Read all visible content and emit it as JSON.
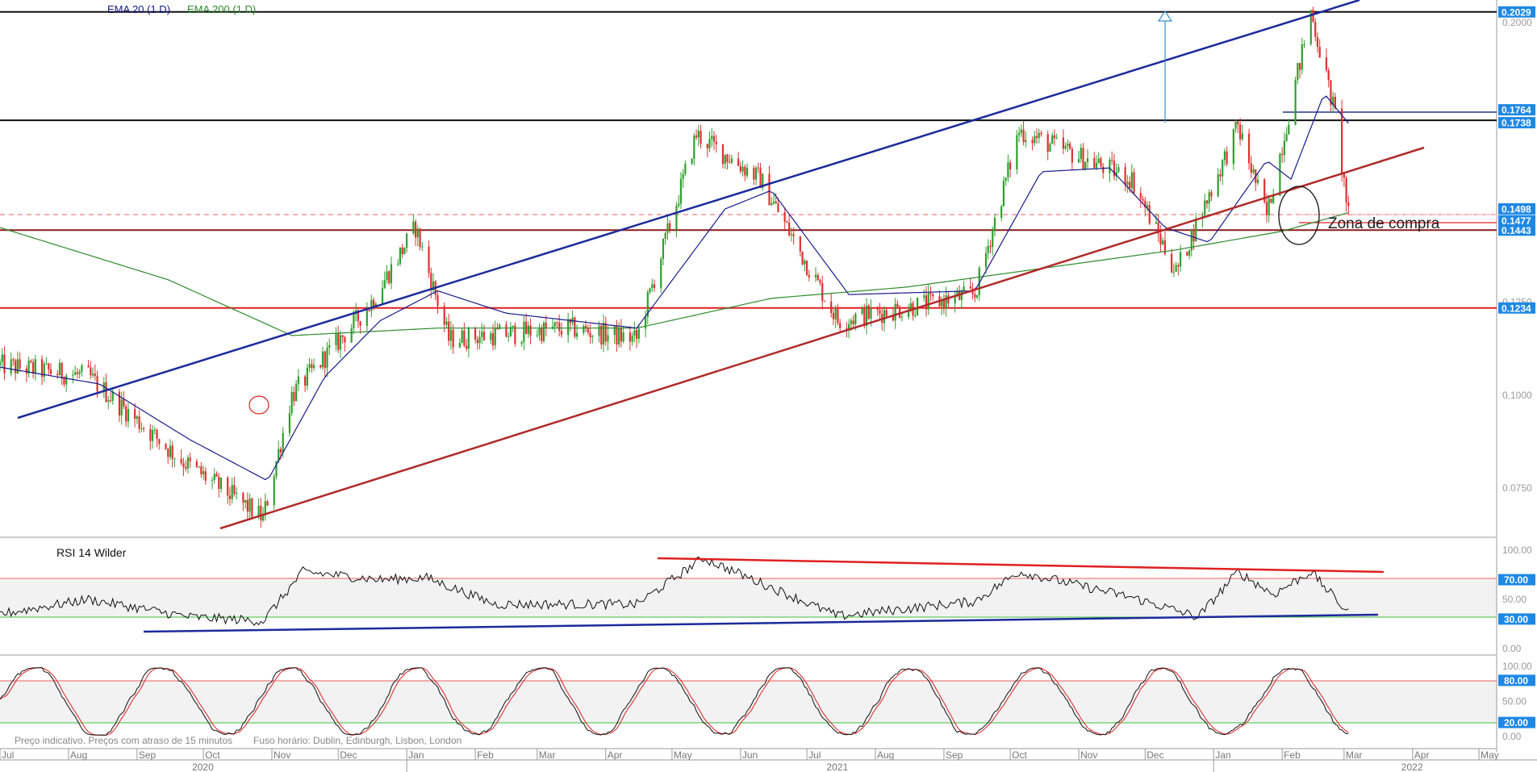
{
  "chart_data": {
    "type": "candlestick",
    "main": {
      "legend": {
        "ema20": "EMA 20  (1 D)",
        "ema200": "EMA 200  (1 D)"
      },
      "y_ticks": [
        "0.2000",
        "0.1250",
        "0.1000",
        "0.0750"
      ],
      "ylim": [
        0.064,
        0.2035
      ],
      "price_labels": [
        {
          "text": "0.2029",
          "value": 0.2029,
          "color": "#1e88e5"
        },
        {
          "text": "0.1764",
          "value": 0.1764,
          "color": "#1e88e5"
        },
        {
          "text": "0.1738",
          "value": 0.1738,
          "color": "#1e88e5"
        },
        {
          "text": "0.1498",
          "value": 0.1498,
          "color": "#1e88e5"
        },
        {
          "text": "0.1477",
          "value": 0.1477,
          "color": "#1e88e5"
        },
        {
          "text": "0.1443",
          "value": 0.1443,
          "color": "#1e88e5"
        },
        {
          "text": "0.1234",
          "value": 0.1234,
          "color": "#1e88e5"
        }
      ],
      "horizontal_lines": [
        {
          "value": 0.2029,
          "color": "#111111"
        },
        {
          "value": 0.1738,
          "color": "#111111"
        },
        {
          "value": 0.1443,
          "color": "#8b1a1a"
        },
        {
          "value": 0.1234,
          "color": "#e02020"
        }
      ],
      "annotation": "Zona de compra",
      "key_points": [
        {
          "date": "2020-07-01",
          "price": 0.108
        },
        {
          "date": "2020-08-10",
          "price": 0.105
        },
        {
          "date": "2020-09-20",
          "price": 0.083
        },
        {
          "date": "2020-10-28",
          "price": 0.067
        },
        {
          "date": "2020-11-10",
          "price": 0.1
        },
        {
          "date": "2020-12-15",
          "price": 0.124
        },
        {
          "date": "2021-01-05",
          "price": 0.145
        },
        {
          "date": "2021-01-20",
          "price": 0.115
        },
        {
          "date": "2021-03-15",
          "price": 0.118
        },
        {
          "date": "2021-04-15",
          "price": 0.115
        },
        {
          "date": "2021-05-12",
          "price": 0.17
        },
        {
          "date": "2021-06-10",
          "price": 0.158
        },
        {
          "date": "2021-07-15",
          "price": 0.12
        },
        {
          "date": "2021-09-15",
          "price": 0.127
        },
        {
          "date": "2021-10-05",
          "price": 0.171
        },
        {
          "date": "2021-11-25",
          "price": 0.158
        },
        {
          "date": "2021-12-15",
          "price": 0.133
        },
        {
          "date": "2022-01-12",
          "price": 0.172
        },
        {
          "date": "2022-01-25",
          "price": 0.148
        },
        {
          "date": "2022-02-14",
          "price": 0.203
        },
        {
          "date": "2022-02-25",
          "price": 0.175
        },
        {
          "date": "2022-03-03",
          "price": 0.148
        }
      ],
      "ema20_points": [
        {
          "date": "2020-07-01",
          "price": 0.1075
        },
        {
          "date": "2020-08-15",
          "price": 0.103
        },
        {
          "date": "2020-09-25",
          "price": 0.088
        },
        {
          "date": "2020-10-30",
          "price": 0.077
        },
        {
          "date": "2020-11-25",
          "price": 0.105
        },
        {
          "date": "2020-12-20",
          "price": 0.12
        },
        {
          "date": "2021-01-15",
          "price": 0.128
        },
        {
          "date": "2021-02-15",
          "price": 0.122
        },
        {
          "date": "2021-04-15",
          "price": 0.118
        },
        {
          "date": "2021-05-25",
          "price": 0.15
        },
        {
          "date": "2021-06-15",
          "price": 0.155
        },
        {
          "date": "2021-07-20",
          "price": 0.127
        },
        {
          "date": "2021-09-15",
          "price": 0.128
        },
        {
          "date": "2021-10-15",
          "price": 0.16
        },
        {
          "date": "2021-11-15",
          "price": 0.161
        },
        {
          "date": "2021-12-10",
          "price": 0.145
        },
        {
          "date": "2021-12-30",
          "price": 0.141
        },
        {
          "date": "2022-01-25",
          "price": 0.163
        },
        {
          "date": "2022-02-05",
          "price": 0.158
        },
        {
          "date": "2022-02-20",
          "price": 0.181
        },
        {
          "date": "2022-03-03",
          "price": 0.173
        }
      ],
      "ema200_points": [
        {
          "date": "2020-07-01",
          "price": 0.145
        },
        {
          "date": "2020-09-15",
          "price": 0.131
        },
        {
          "date": "2020-11-10",
          "price": 0.116
        },
        {
          "date": "2021-01-15",
          "price": 0.118
        },
        {
          "date": "2021-04-15",
          "price": 0.118
        },
        {
          "date": "2021-06-15",
          "price": 0.126
        },
        {
          "date": "2021-08-15",
          "price": 0.129
        },
        {
          "date": "2021-10-15",
          "price": 0.134
        },
        {
          "date": "2021-12-15",
          "price": 0.139
        },
        {
          "date": "2022-02-01",
          "price": 0.144
        },
        {
          "date": "2022-03-03",
          "price": 0.149
        }
      ]
    },
    "rsi": {
      "label": "RSI 14 Wilder",
      "y_ticks": [
        "100.00",
        "50.00",
        "0.00"
      ],
      "levels": [
        {
          "text": "70.00",
          "value": 70,
          "color": "#1e88e5"
        },
        {
          "text": "30.00",
          "value": 30,
          "color": "#1e88e5"
        }
      ],
      "key_points": [
        {
          "date": "2020-07-01",
          "value": 35
        },
        {
          "date": "2020-08-10",
          "value": 50
        },
        {
          "date": "2020-09-25",
          "value": 32
        },
        {
          "date": "2020-10-28",
          "value": 28
        },
        {
          "date": "2020-11-15",
          "value": 78
        },
        {
          "date": "2020-12-20",
          "value": 70
        },
        {
          "date": "2021-01-10",
          "value": 72
        },
        {
          "date": "2021-02-10",
          "value": 45
        },
        {
          "date": "2021-04-15",
          "value": 45
        },
        {
          "date": "2021-05-15",
          "value": 92
        },
        {
          "date": "2021-07-15",
          "value": 33
        },
        {
          "date": "2021-09-15",
          "value": 48
        },
        {
          "date": "2021-10-05",
          "value": 78
        },
        {
          "date": "2021-11-25",
          "value": 52
        },
        {
          "date": "2021-12-25",
          "value": 32
        },
        {
          "date": "2022-01-12",
          "value": 78
        },
        {
          "date": "2022-01-28",
          "value": 55
        },
        {
          "date": "2022-02-14",
          "value": 78
        },
        {
          "date": "2022-03-03",
          "value": 36
        }
      ]
    },
    "stoch": {
      "y_ticks": [
        "100.00",
        "50.00",
        "0.00"
      ],
      "levels": [
        {
          "text": "80.00",
          "value": 80,
          "color": "#1e88e5"
        },
        {
          "text": "20.00",
          "value": 20,
          "color": "#1e88e5"
        }
      ]
    },
    "footer_note": "Preço indicativo. Preços com atraso de 15 minutos",
    "timezone_note": "Fuso horário: Dublin, Edinburgh, Lisbon, London",
    "x_axis": {
      "months": [
        {
          "label": "Jul",
          "date": "2020-07-01"
        },
        {
          "label": "Aug",
          "date": "2020-08-01"
        },
        {
          "label": "Sep",
          "date": "2020-09-01"
        },
        {
          "label": "Oct",
          "date": "2020-10-01"
        },
        {
          "label": "Nov",
          "date": "2020-11-01"
        },
        {
          "label": "Dec",
          "date": "2020-12-01"
        },
        {
          "label": "Jan",
          "date": "2021-01-01"
        },
        {
          "label": "Feb",
          "date": "2021-02-01"
        },
        {
          "label": "Mar",
          "date": "2021-03-01"
        },
        {
          "label": "Apr",
          "date": "2021-04-01"
        },
        {
          "label": "May",
          "date": "2021-05-01"
        },
        {
          "label": "Jun",
          "date": "2021-06-01"
        },
        {
          "label": "Jul",
          "date": "2021-07-01"
        },
        {
          "label": "Aug",
          "date": "2021-08-01"
        },
        {
          "label": "Sep",
          "date": "2021-09-01"
        },
        {
          "label": "Oct",
          "date": "2021-10-01"
        },
        {
          "label": "Nov",
          "date": "2021-11-01"
        },
        {
          "label": "Dec",
          "date": "2021-12-01"
        },
        {
          "label": "Jan",
          "date": "2022-01-01"
        },
        {
          "label": "Feb",
          "date": "2022-02-01"
        },
        {
          "label": "Mar",
          "date": "2022-03-01"
        },
        {
          "label": "Apr",
          "date": "2022-04-01"
        },
        {
          "label": "May",
          "date": "2022-05-01"
        }
      ],
      "years": [
        {
          "label": "2020",
          "date": "2020-10-01"
        },
        {
          "label": "2021",
          "date": "2021-07-15"
        },
        {
          "label": "2022",
          "date": "2022-04-01"
        }
      ]
    }
  }
}
